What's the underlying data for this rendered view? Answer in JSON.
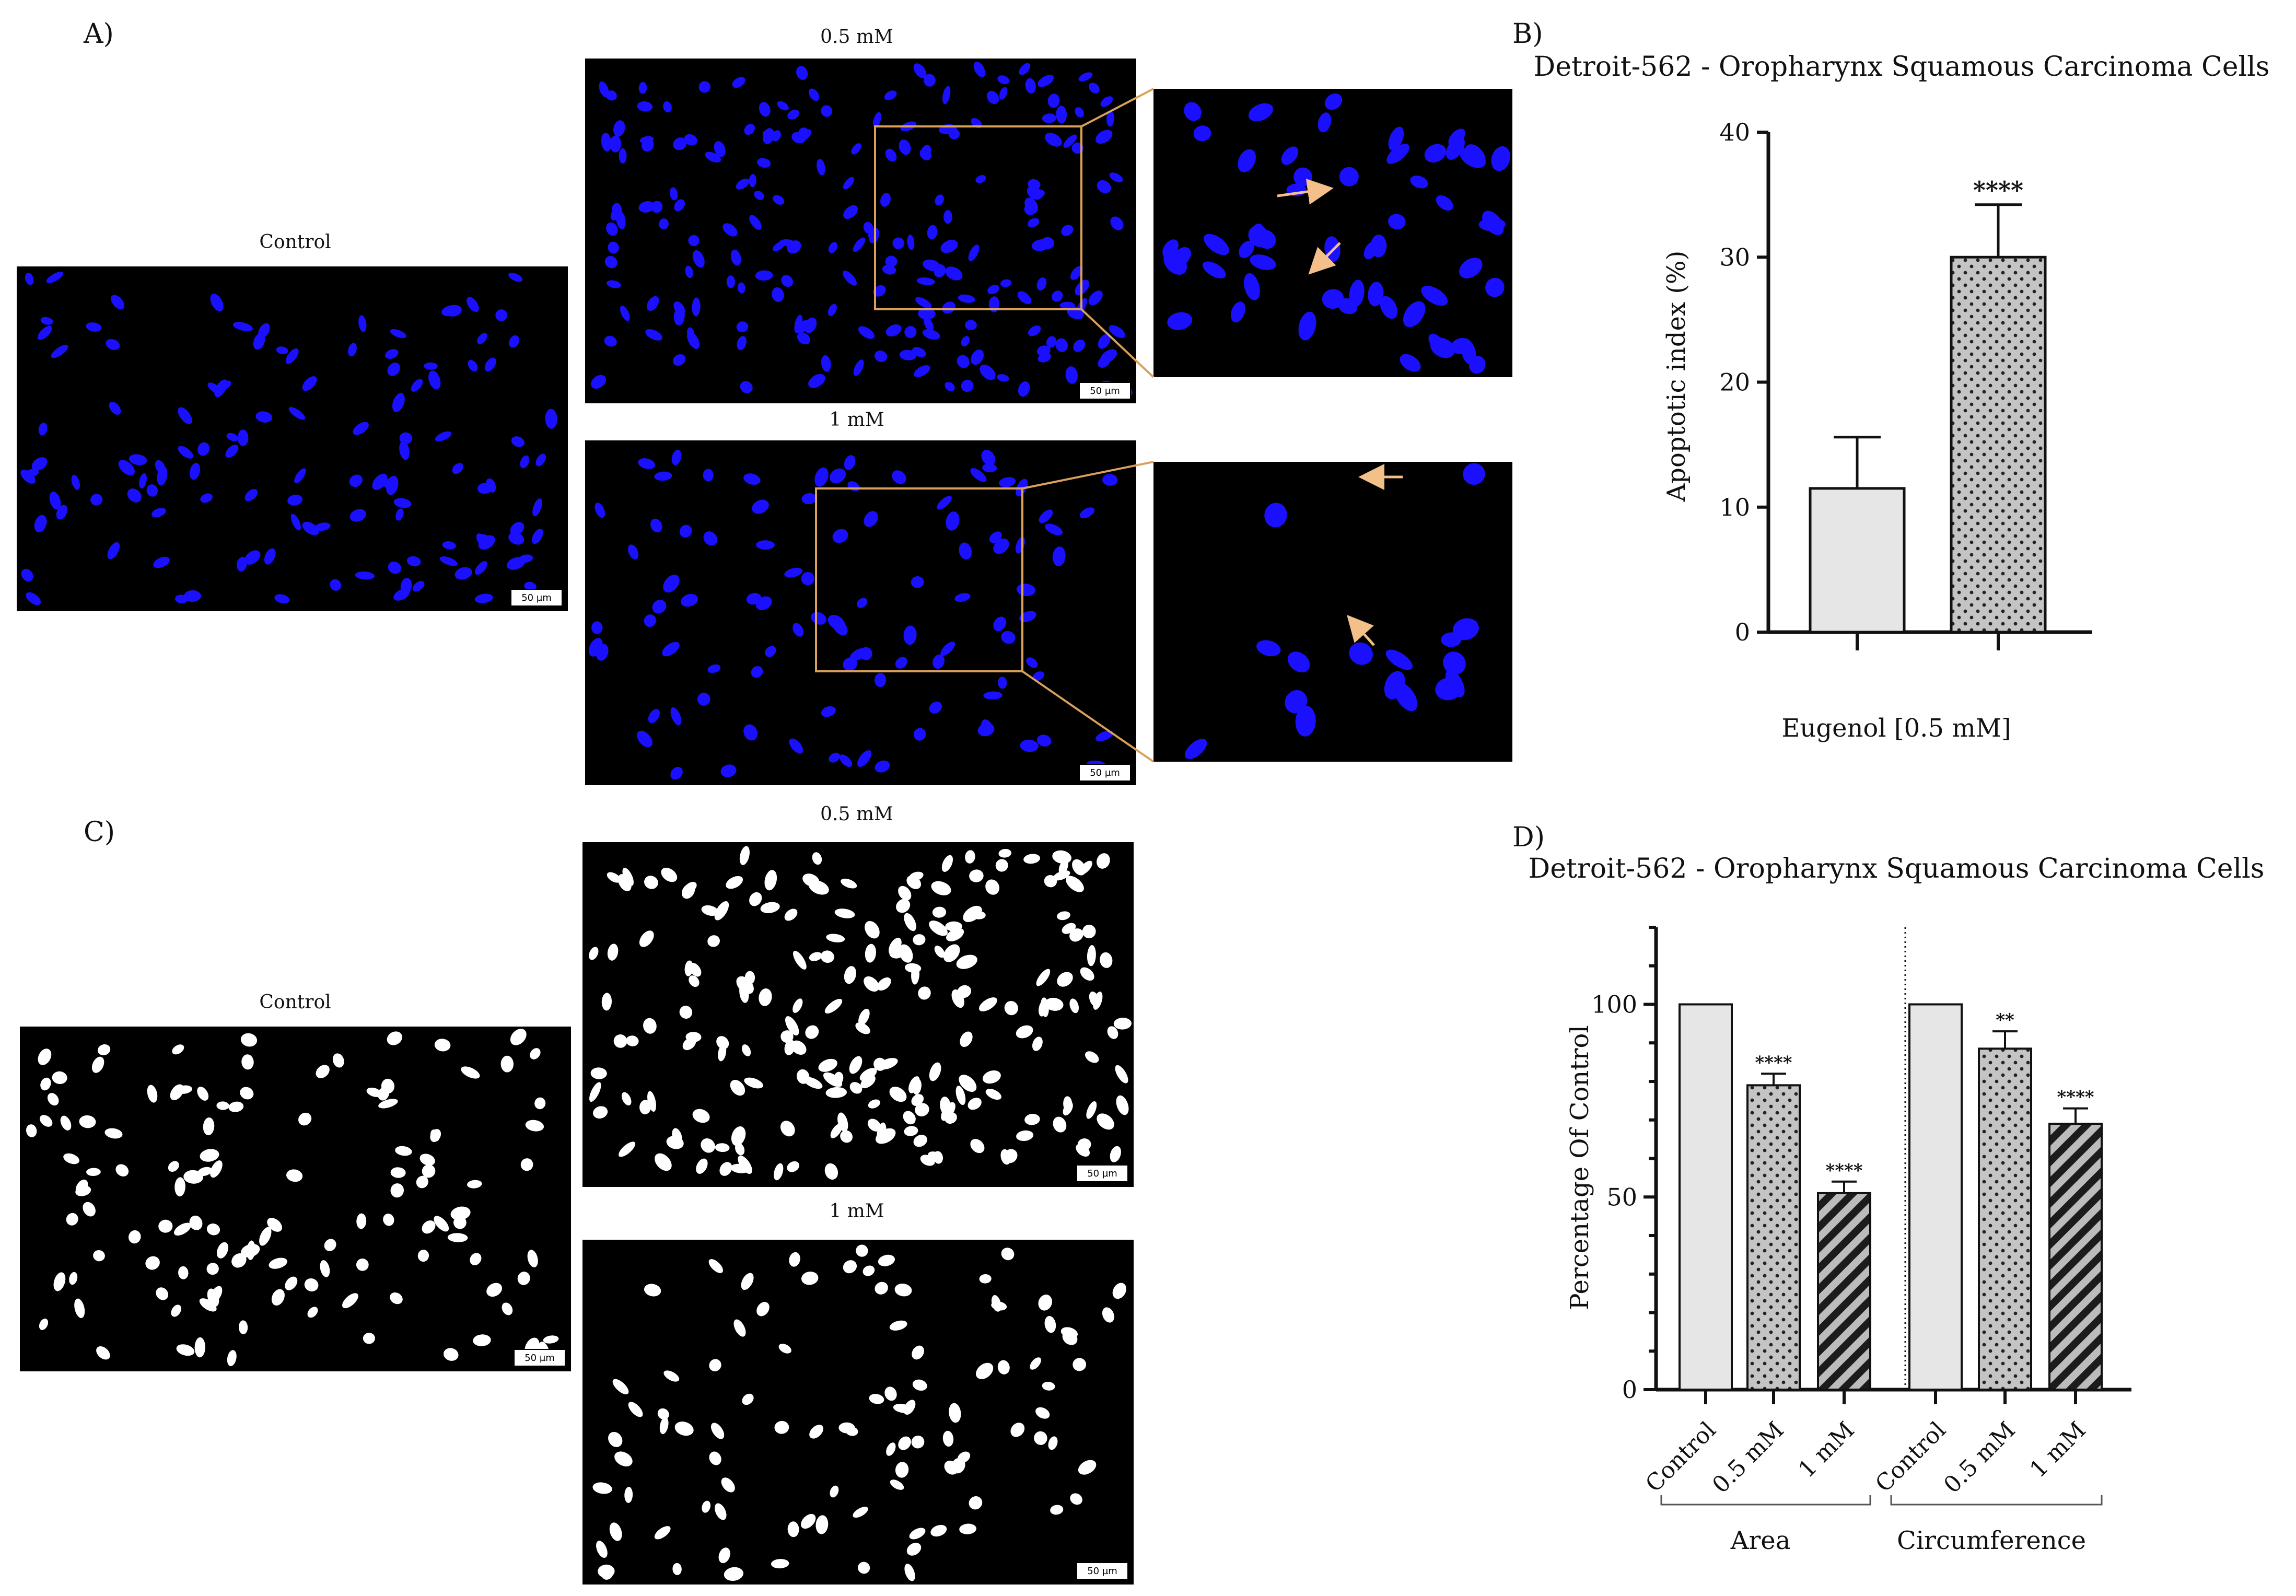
{
  "panels": {
    "a_letter": "A)",
    "b_letter": "B)",
    "c_letter": "C)",
    "d_letter": "D)"
  },
  "micrographs": {
    "control_label": "Control",
    "half_mm_label": "0.5 mM",
    "one_mm_label": "1 mM",
    "scale_bar": "50 µm"
  },
  "colors": {
    "nucleus_stain": "#1a10ff",
    "mask_nucleus": "#ffffff",
    "field_background": "#000000",
    "inset_box": "#d9a05a",
    "arrow": "#f3c08a",
    "bar_control": "#e6e6e6",
    "bar_treated": "#bdbdbd"
  },
  "chart_data": [
    {
      "panel": "B",
      "type": "bar",
      "title": "Detroit-562 - Oropharynx Squamous Carcinoma Cells",
      "xlabel": "Eugenol [0.5 mM]",
      "ylabel": "Apoptotic index (%)",
      "ylim": [
        0,
        40
      ],
      "yticks": [
        "0",
        "10",
        "20",
        "30",
        "40"
      ],
      "bars": [
        {
          "value": 11.5,
          "error": 4.1,
          "pattern": "solid",
          "significance": ""
        },
        {
          "value": 30,
          "error": 4.2,
          "pattern": "dots",
          "significance": "****"
        }
      ]
    },
    {
      "panel": "D",
      "type": "bar",
      "title": "Detroit-562 - Oropharynx Squamous Carcinoma Cells",
      "ylabel": "Percentage Of Control",
      "ylim": [
        0,
        120
      ],
      "yticks": [
        "0",
        "50",
        "100"
      ],
      "categories": [
        "Control",
        "0.5 mM",
        "1 mM"
      ],
      "groups": [
        {
          "name": "Area",
          "values": [
            100,
            79,
            51
          ],
          "errors": [
            0,
            3,
            3
          ],
          "significance": [
            "",
            "****",
            "****"
          ]
        },
        {
          "name": "Circumference",
          "values": [
            100,
            88.5,
            69
          ],
          "errors": [
            0,
            4.5,
            4
          ],
          "significance": [
            "",
            "**",
            "****"
          ]
        }
      ],
      "patterns": [
        "solid",
        "dots",
        "stripes"
      ]
    }
  ]
}
